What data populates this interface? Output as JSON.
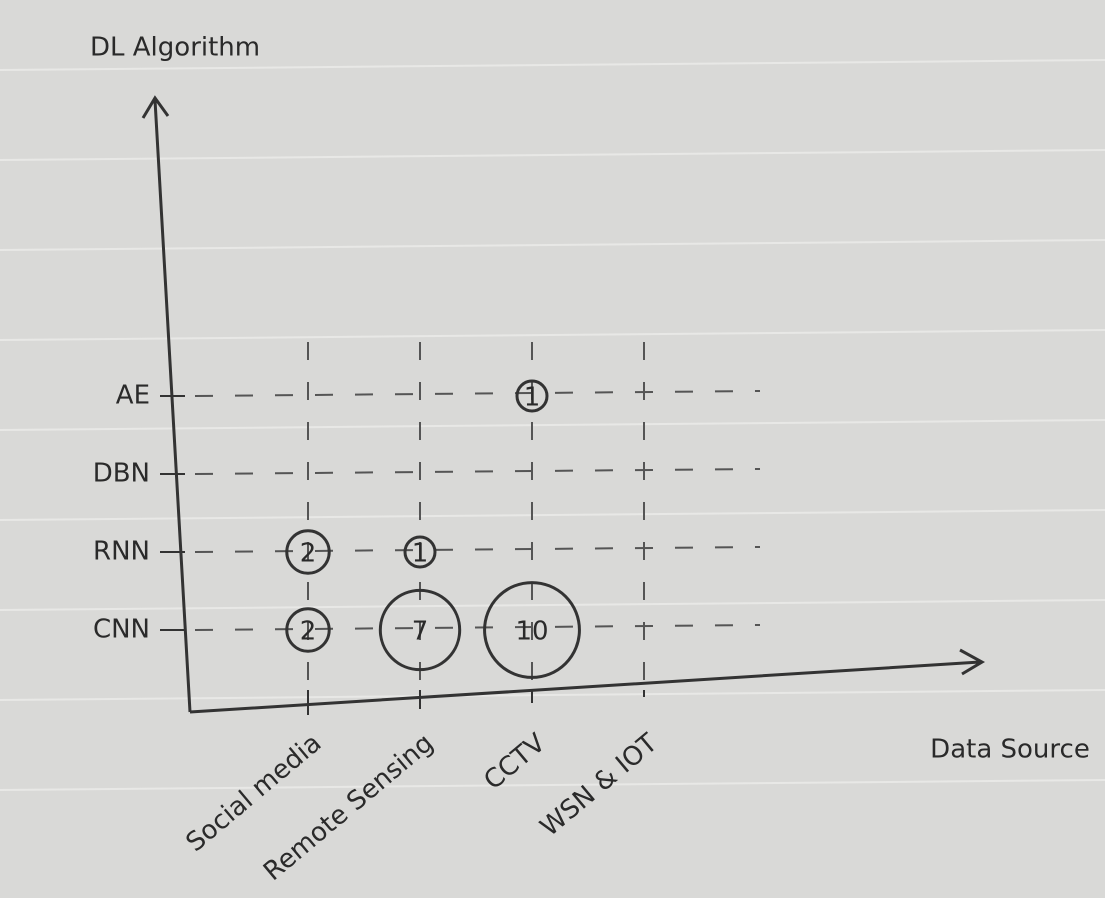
{
  "chart_data": {
    "type": "bubble",
    "x_label": "Data Source",
    "y_label": "DL Algorithm",
    "categories": [
      "Social media",
      "Remote Sensing",
      "CCTV",
      "WSN & IOT"
    ],
    "y_categories": [
      "CNN",
      "RNN",
      "DBN",
      "AE"
    ],
    "values": [
      [
        2,
        7,
        10,
        null
      ],
      [
        2,
        1,
        null,
        null
      ],
      [
        null,
        null,
        null,
        null
      ],
      [
        null,
        null,
        1,
        null
      ]
    ],
    "color": "#333333",
    "grid": true
  }
}
